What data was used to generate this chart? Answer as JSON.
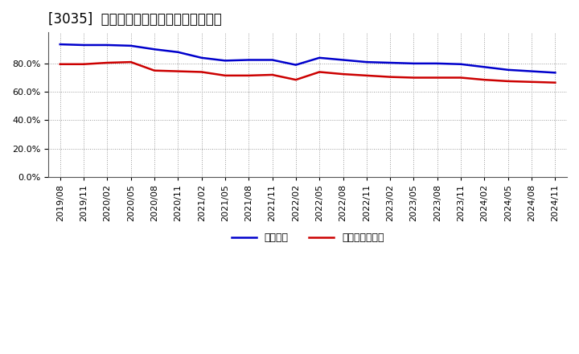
{
  "title": "[3035]  固定比率、固定長期適合率の推移",
  "background_color": "#ffffff",
  "plot_bg_color": "#ffffff",
  "grid_color": "#999999",
  "x_labels": [
    "2019/08",
    "2019/11",
    "2020/02",
    "2020/05",
    "2020/08",
    "2020/11",
    "2021/02",
    "2021/05",
    "2021/08",
    "2021/11",
    "2022/02",
    "2022/05",
    "2022/08",
    "2022/11",
    "2023/02",
    "2023/05",
    "2023/08",
    "2023/11",
    "2024/02",
    "2024/05",
    "2024/08",
    "2024/11"
  ],
  "fixed_ratio": [
    93.5,
    93.0,
    93.0,
    92.5,
    90.0,
    88.0,
    84.0,
    82.0,
    82.5,
    82.5,
    79.0,
    84.0,
    82.5,
    81.0,
    80.5,
    80.0,
    80.0,
    79.5,
    77.5,
    75.5,
    74.5,
    73.5
  ],
  "fixed_long_ratio": [
    79.5,
    79.5,
    80.5,
    81.0,
    75.0,
    74.5,
    74.0,
    71.5,
    71.5,
    72.0,
    68.5,
    74.0,
    72.5,
    71.5,
    70.5,
    70.0,
    70.0,
    70.0,
    68.5,
    67.5,
    67.0,
    66.5
  ],
  "line1_color": "#0000cc",
  "line2_color": "#cc0000",
  "line1_label": "固定比率",
  "line2_label": "固定長期適合率",
  "ylim": [
    0,
    102
  ],
  "yticks": [
    0,
    20,
    40,
    60,
    80
  ],
  "title_fontsize": 12,
  "legend_fontsize": 9,
  "tick_fontsize": 8
}
